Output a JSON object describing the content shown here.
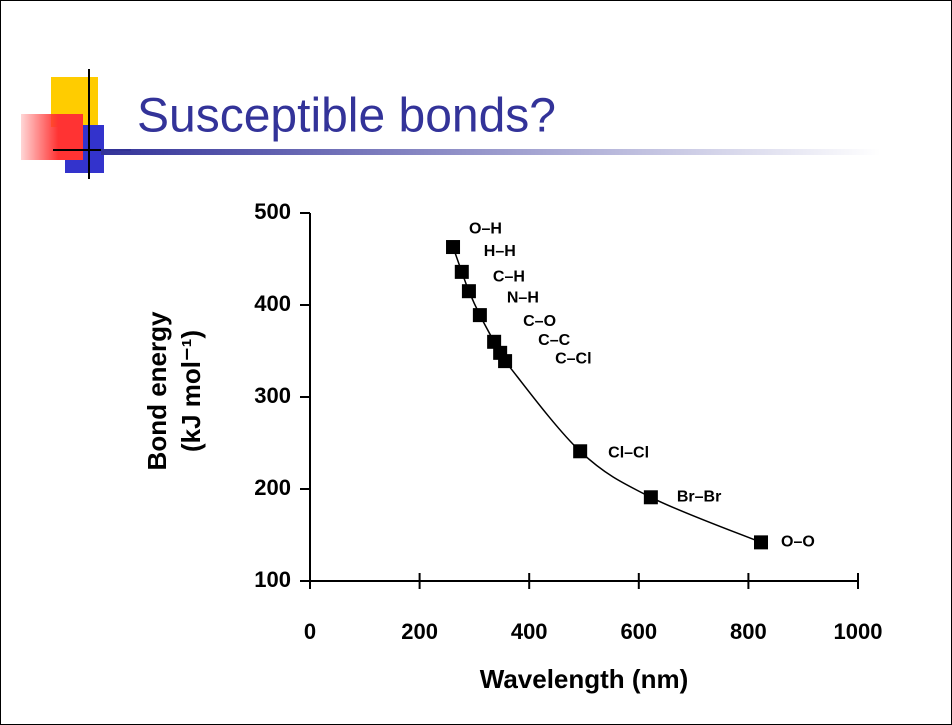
{
  "chart_data": {
    "type": "scatter",
    "title": "Susceptible bonds?",
    "xlabel": "Wavelength (nm)",
    "ylabel": [
      "Bond energy",
      "(kJ mol⁻¹)"
    ],
    "xlim": [
      0,
      1000
    ],
    "ylim": [
      100,
      500
    ],
    "xticks": [
      0,
      200,
      400,
      600,
      800,
      1000
    ],
    "yticks": [
      100,
      200,
      300,
      400,
      500
    ],
    "grid": false,
    "line": true,
    "color": "#000000",
    "series": [
      {
        "labels": [
          "O–H",
          "H–H",
          "C–H",
          "N–H",
          "C–O",
          "C–C",
          "C–Cl",
          "Cl–Cl",
          "Br–Br",
          "O–O"
        ],
        "x": [
          261,
          277,
          290,
          310,
          336,
          347,
          356,
          493,
          622,
          823
        ],
        "values": [
          463,
          436,
          415,
          389,
          360,
          348,
          339,
          241,
          191,
          142
        ]
      }
    ]
  }
}
